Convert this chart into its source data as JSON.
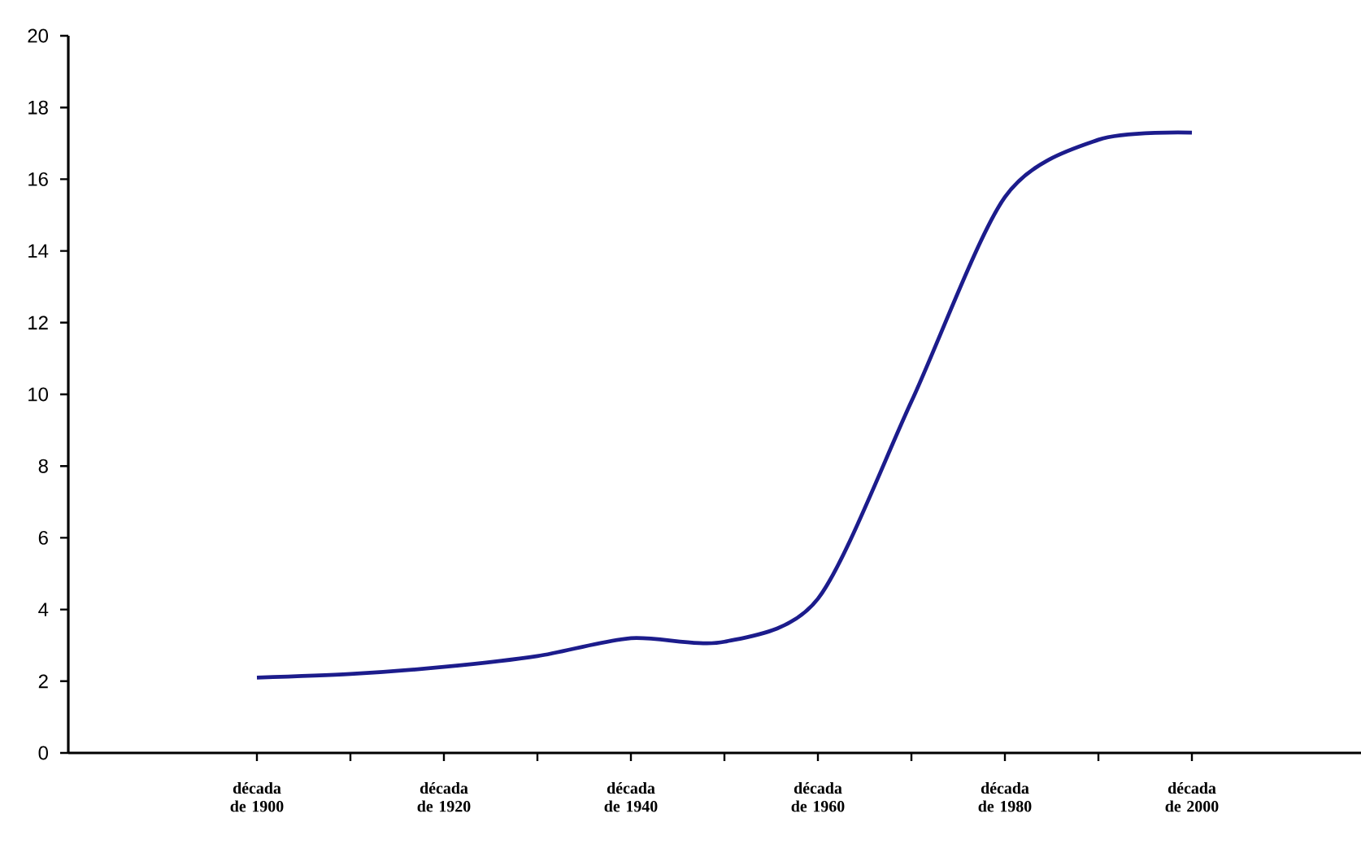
{
  "chart_data": {
    "type": "line",
    "categories": [
      "década de 1900",
      null,
      "década de 1920",
      null,
      "década de 1940",
      null,
      "década de 1960",
      null,
      "década de 1980",
      null,
      "década de 2000"
    ],
    "values": [
      2.1,
      2.2,
      2.4,
      2.7,
      3.2,
      3.1,
      4.3,
      9.8,
      15.5,
      17.1,
      17.3
    ],
    "color": "#1c1c8c",
    "ylim": [
      0,
      20
    ],
    "yticks": [
      0,
      2,
      4,
      6,
      8,
      10,
      12,
      14,
      16,
      18,
      20
    ],
    "grid": false,
    "marker": "none",
    "line_style": "solid"
  }
}
